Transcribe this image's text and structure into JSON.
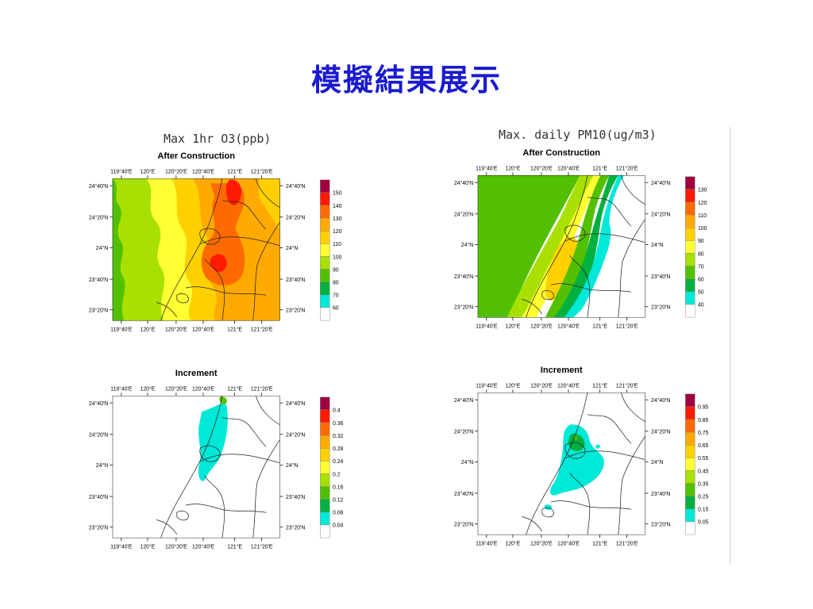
{
  "slide": {
    "title": "模擬結果展示"
  },
  "columns": [
    {
      "caption": "Max 1hr O3(ppb)"
    },
    {
      "caption": "Max. daily PM10(ug/m3)"
    }
  ],
  "axes": {
    "lon_labels": [
      "119°40'E",
      "120°E",
      "120°20'E",
      "120°40'E",
      "121°E",
      "121°20'E"
    ],
    "lat_labels": [
      "24°40'N",
      "24°20'N",
      "24°N",
      "23°40'N",
      "23°20'N"
    ]
  },
  "maps": [
    {
      "id": "o3-after",
      "title": "After Construction",
      "legend": {
        "labels": [
          "150",
          "140",
          "130",
          "120",
          "110",
          "100",
          "90",
          "80",
          "70",
          "60"
        ],
        "colors": [
          "#a00040",
          "#ff1a00",
          "#ff6a00",
          "#ffaa00",
          "#ffd000",
          "#ffff33",
          "#a8e000",
          "#52c000",
          "#00b040",
          "#00e8d8",
          "#ffffff"
        ]
      }
    },
    {
      "id": "o3-increment",
      "title": "Increment",
      "legend": {
        "labels": [
          "0.4",
          "0.36",
          "0.32",
          "0.28",
          "0.24",
          "0.2",
          "0.16",
          "0.12",
          "0.08",
          "0.04"
        ],
        "colors": [
          "#a00040",
          "#ff1a00",
          "#ff6a00",
          "#ffaa00",
          "#ffd000",
          "#ffff33",
          "#a8e000",
          "#52c000",
          "#00b040",
          "#00e8d8",
          "#ffffff"
        ]
      }
    },
    {
      "id": "pm10-after",
      "title": "After Construction",
      "legend": {
        "labels": [
          "130",
          "120",
          "110",
          "100",
          "90",
          "80",
          "70",
          "60",
          "50",
          "40"
        ],
        "colors": [
          "#a00040",
          "#ff1a00",
          "#ff6a00",
          "#ffaa00",
          "#ffd000",
          "#ffff33",
          "#a8e000",
          "#52c000",
          "#00b040",
          "#00e8d8",
          "#ffffff"
        ]
      }
    },
    {
      "id": "pm10-increment",
      "title": "Increment",
      "legend": {
        "labels": [
          "0.95",
          "0.85",
          "0.75",
          "0.65",
          "0.55",
          "0.45",
          "0.35",
          "0.25",
          "0.15",
          "0.05"
        ],
        "colors": [
          "#a00040",
          "#ff1a00",
          "#ff6a00",
          "#ffaa00",
          "#ffd000",
          "#ffff33",
          "#a8e000",
          "#52c000",
          "#00b040",
          "#00e8d8",
          "#ffffff"
        ]
      }
    }
  ]
}
